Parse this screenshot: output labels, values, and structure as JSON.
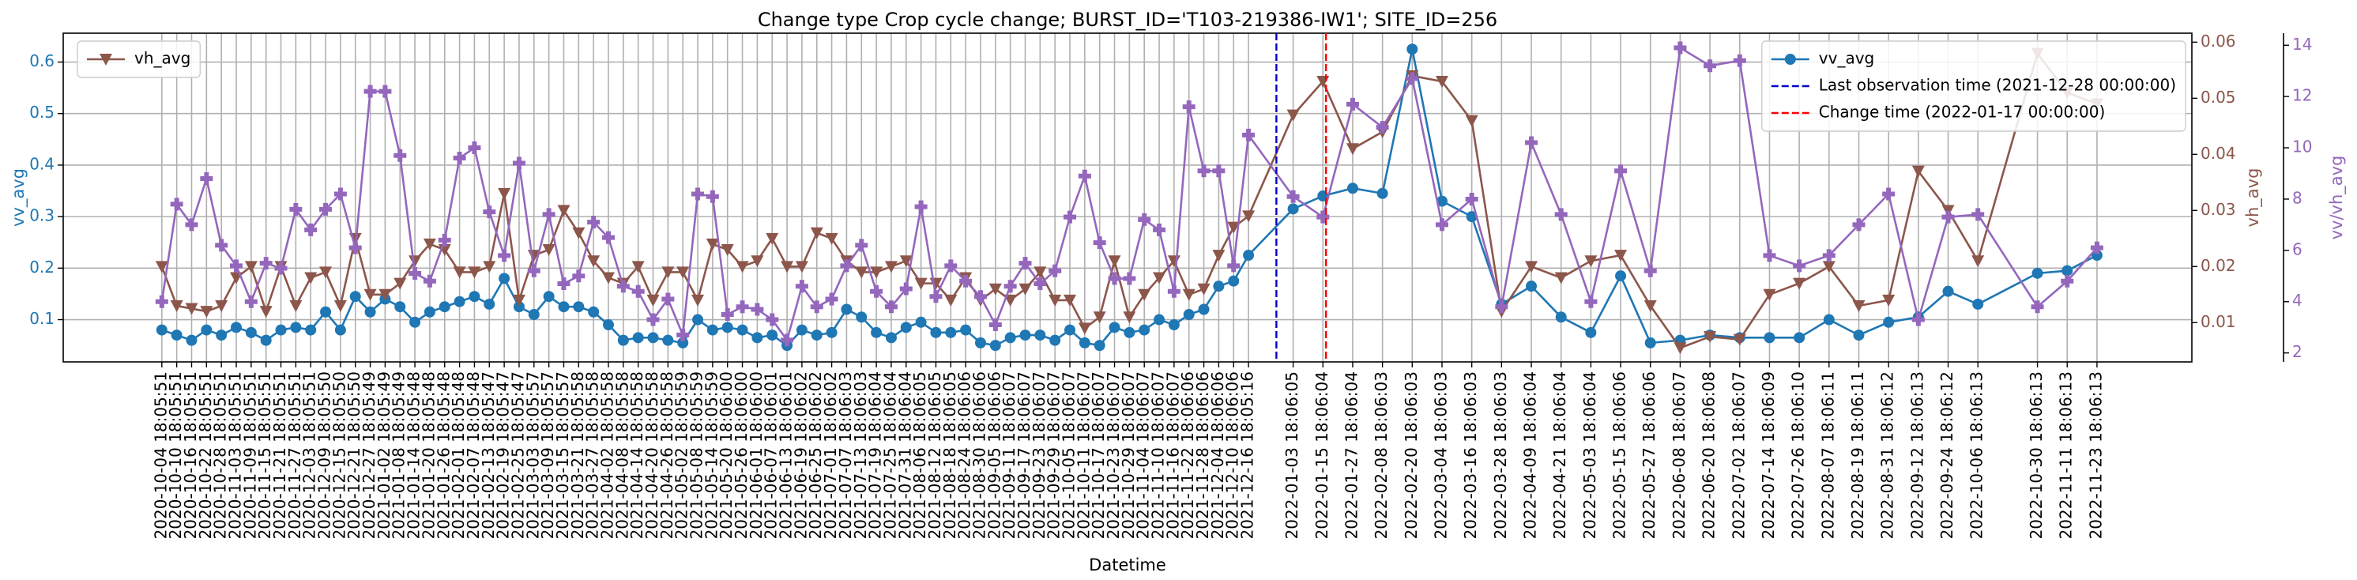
{
  "chart_data": {
    "type": "line",
    "title": "Change type Crop cycle change; BURST_ID='T103-219386-IW1'; SITE_ID=256",
    "xlabel": "Datetime",
    "ylabel": "vv_avg",
    "y2label": "vh_avg",
    "x": [
      "2020-10-04 18:05:51",
      "2020-10-10 18:05:51",
      "2020-10-16 18:05:51",
      "2020-10-22 18:05:51",
      "2020-10-28 18:05:51",
      "2020-11-03 18:05:51",
      "2020-11-09 18:05:51",
      "2020-11-15 18:05:51",
      "2020-11-21 18:05:51",
      "2020-11-27 18:05:51",
      "2020-12-03 18:05:51",
      "2020-12-09 18:05:50",
      "2020-12-15 18:05:50",
      "2020-12-21 18:05:50",
      "2020-12-27 18:05:49",
      "2021-01-02 18:05:49",
      "2021-01-08 18:05:49",
      "2021-01-14 18:05:48",
      "2021-01-20 18:05:48",
      "2021-01-26 18:05:48",
      "2021-02-01 18:05:48",
      "2021-02-07 18:05:48",
      "2021-02-13 18:05:47",
      "2021-02-19 18:05:47",
      "2021-02-25 18:05:47",
      "2021-03-03 18:05:57",
      "2021-03-09 18:05:57",
      "2021-03-15 18:05:57",
      "2021-03-21 18:05:58",
      "2021-03-27 18:05:58",
      "2021-04-02 18:05:58",
      "2021-04-08 18:05:58",
      "2021-04-14 18:05:58",
      "2021-04-20 18:05:58",
      "2021-04-26 18:05:58",
      "2021-05-02 18:05:59",
      "2021-05-08 18:05:59",
      "2021-05-14 18:05:59",
      "2021-05-20 18:06:00",
      "2021-05-26 18:06:00",
      "2021-06-01 18:06:00",
      "2021-06-07 18:06:01",
      "2021-06-13 18:06:01",
      "2021-06-19 18:06:02",
      "2021-06-25 18:06:02",
      "2021-07-01 18:06:02",
      "2021-07-07 18:06:03",
      "2021-07-13 18:06:03",
      "2021-07-19 18:06:04",
      "2021-07-25 18:06:04",
      "2021-07-31 18:06:04",
      "2021-08-06 18:06:05",
      "2021-08-12 18:06:05",
      "2021-08-18 18:06:05",
      "2021-08-24 18:06:06",
      "2021-08-30 18:06:06",
      "2021-09-05 18:06:06",
      "2021-09-11 18:06:07",
      "2021-09-17 18:06:07",
      "2021-09-23 18:06:07",
      "2021-09-29 18:06:07",
      "2021-10-05 18:06:07",
      "2021-10-11 18:06:07",
      "2021-10-17 18:06:07",
      "2021-10-23 18:06:07",
      "2021-10-29 18:06:07",
      "2021-11-04 18:06:07",
      "2021-11-10 18:06:07",
      "2021-11-16 18:06:07",
      "2021-11-22 18:06:06",
      "2021-11-28 18:06:06",
      "2021-12-04 18:06:06",
      "2021-12-10 18:06:06",
      "2021-12-16 18:05:16",
      "2022-01-03 18:06:05",
      "2022-01-15 18:06:04",
      "2022-01-27 18:06:04",
      "2022-02-08 18:06:03",
      "2022-02-20 18:06:03",
      "2022-03-04 18:06:03",
      "2022-03-16 18:06:03",
      "2022-03-28 18:06:03",
      "2022-04-09 18:06:04",
      "2022-04-21 18:06:04",
      "2022-05-03 18:06:04",
      "2022-05-15 18:06:06",
      "2022-05-27 18:06:06",
      "2022-06-08 18:06:07",
      "2022-06-20 18:06:08",
      "2022-07-02 18:06:07",
      "2022-07-14 18:06:09",
      "2022-07-26 18:06:10",
      "2022-08-07 18:06:11",
      "2022-08-19 18:06:11",
      "2022-08-31 18:06:12",
      "2022-09-12 18:06:13",
      "2022-09-24 18:06:12",
      "2022-10-06 18:06:13",
      "2022-10-30 18:06:13",
      "2022-11-11 18:06:13",
      "2022-11-23 18:06:13"
    ],
    "xlim": [
      "2020-08-26 00:00:00",
      "2023-01-01 00:00:00"
    ],
    "ylim": [
      0.018,
      0.656
    ],
    "yticks": [
      0.1,
      0.2,
      0.3,
      0.4,
      0.5,
      0.6
    ],
    "y2lim": [
      0.003,
      0.0616
    ],
    "y2ticks": [
      0.01,
      0.02,
      0.03,
      0.04,
      0.05,
      0.06
    ],
    "y3lim": [
      1.65,
      14.47
    ],
    "y3ticks": [
      2,
      4,
      6,
      8,
      10,
      12,
      14
    ],
    "grid": true,
    "series": [
      {
        "name": "vv_avg",
        "color": "#1f77b4",
        "marker": "circle",
        "axis": "y",
        "legend": "upper right",
        "values": [
          0.08,
          0.07,
          0.06,
          0.08,
          0.07,
          0.085,
          0.075,
          0.06,
          0.08,
          0.085,
          0.08,
          0.115,
          0.08,
          0.145,
          0.115,
          0.14,
          0.125,
          0.095,
          0.115,
          0.125,
          0.135,
          0.145,
          0.13,
          0.18,
          0.125,
          0.11,
          0.145,
          0.125,
          0.125,
          0.115,
          0.09,
          0.06,
          0.065,
          0.065,
          0.06,
          0.055,
          0.1,
          0.08,
          0.085,
          0.08,
          0.065,
          0.07,
          0.05,
          0.08,
          0.07,
          0.075,
          0.12,
          0.105,
          0.075,
          0.065,
          0.085,
          0.095,
          0.075,
          0.075,
          0.08,
          0.055,
          0.05,
          0.065,
          0.07,
          0.07,
          0.06,
          0.08,
          0.055,
          0.05,
          0.085,
          0.075,
          0.08,
          0.1,
          0.09,
          0.11,
          0.12,
          0.165,
          0.175,
          0.225,
          0.315,
          0.34,
          0.355,
          0.345,
          0.625,
          0.33,
          0.3,
          0.13,
          0.165,
          0.105,
          0.075,
          0.185,
          0.055,
          0.06,
          0.07,
          0.065,
          0.065,
          0.065,
          0.1,
          0.07,
          0.095,
          0.105,
          0.155,
          0.13,
          0.19,
          0.195,
          0.225
        ]
      },
      {
        "name": "vh_avg",
        "color": "#8c564b",
        "marker": "triangle-down",
        "axis": "y2",
        "legend": "upper left",
        "values": [
          0.02,
          0.013,
          0.0125,
          0.012,
          0.013,
          0.018,
          0.02,
          0.012,
          0.02,
          0.013,
          0.018,
          0.019,
          0.013,
          0.025,
          0.015,
          0.015,
          0.017,
          0.021,
          0.024,
          0.023,
          0.019,
          0.019,
          0.02,
          0.033,
          0.014,
          0.022,
          0.023,
          0.03,
          0.026,
          0.021,
          0.018,
          0.017,
          0.02,
          0.014,
          0.019,
          0.019,
          0.014,
          0.024,
          0.023,
          0.02,
          0.021,
          0.025,
          0.02,
          0.02,
          0.026,
          0.025,
          0.021,
          0.019,
          0.019,
          0.02,
          0.021,
          0.017,
          0.017,
          0.014,
          0.018,
          0.014,
          0.016,
          0.014,
          0.016,
          0.019,
          0.014,
          0.014,
          0.009,
          0.011,
          0.021,
          0.011,
          0.015,
          0.018,
          0.021,
          0.015,
          0.016,
          0.022,
          0.027,
          0.029,
          0.047,
          0.053,
          0.041,
          0.044,
          0.054,
          0.053,
          0.046,
          0.012,
          0.02,
          0.018,
          0.021,
          0.022,
          0.013,
          0.0055,
          0.0075,
          0.007,
          0.015,
          0.017,
          0.02,
          0.013,
          0.014,
          0.037,
          0.03,
          0.021,
          0.058,
          0.051,
          0.049
        ]
      },
      {
        "name": "vv/vh_avg",
        "color": "#9467bd",
        "marker": "plus",
        "axis": "y3",
        "values": [
          4,
          7.8,
          7,
          8.8,
          6.2,
          5.4,
          4,
          5.5,
          5.3,
          7.6,
          6.8,
          7.6,
          8.2,
          6.1,
          12.2,
          12.2,
          9.7,
          5.1,
          4.8,
          6.4,
          9.6,
          10,
          7.5,
          5.8,
          9.4,
          5.2,
          7.4,
          4.7,
          5,
          7.1,
          6.5,
          4.6,
          4.4,
          3.3,
          4.1,
          2.7,
          8.2,
          8.1,
          3.5,
          3.8,
          3.7,
          3.3,
          2.5,
          4.6,
          3.8,
          4.1,
          5.4,
          6.2,
          4.4,
          3.8,
          4.5,
          7.7,
          4.2,
          5.4,
          4.8,
          4.2,
          3.1,
          4.6,
          5.5,
          4.7,
          5.2,
          7.3,
          8.9,
          6.3,
          4.9,
          4.9,
          7.2,
          6.8,
          4.4,
          11.6,
          9.1,
          9.1,
          5.4,
          10.5,
          8.1,
          7.3,
          11.7,
          10.8,
          12.7,
          7,
          8,
          3.8,
          10.2,
          7.4,
          4,
          9.1,
          5.2,
          13.9,
          13.2,
          13.4,
          5.8,
          5.4,
          5.8,
          7,
          8.2,
          3.3,
          7.3,
          7.4,
          3.8,
          4.8,
          6.1
        ]
      }
    ],
    "vlines": [
      {
        "name": "Last observation time (2021-12-28 00:00:00)",
        "x": "2021-12-28 00:00:00",
        "color": "#0000cc",
        "legend": "upper right"
      },
      {
        "name": "Change time (2022-01-17 00:00:00)",
        "x": "2022-01-17 00:00:00",
        "color": "#ff0000",
        "legend": "upper right"
      }
    ]
  }
}
